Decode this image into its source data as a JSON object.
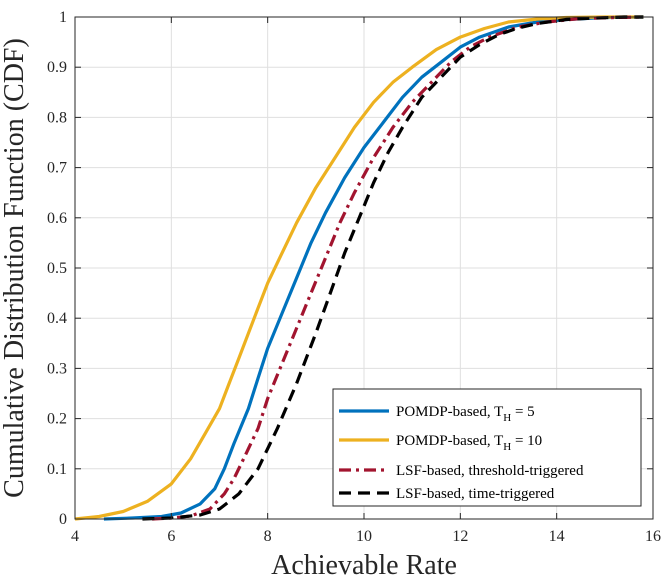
{
  "chart_data": {
    "type": "line",
    "title": "",
    "xlabel": "Achievable Rate",
    "ylabel": "Cumulative Distribution Function (CDF)",
    "xlim": [
      4,
      16
    ],
    "ylim": [
      0,
      1
    ],
    "xticks": [
      4,
      6,
      8,
      10,
      12,
      14,
      16
    ],
    "xtick_labels": [
      "4",
      "6",
      "8",
      "10",
      "12",
      "14",
      "16"
    ],
    "yticks": [
      0,
      0.1,
      0.2,
      0.3,
      0.4,
      0.5,
      0.6,
      0.7,
      0.8,
      0.9,
      1
    ],
    "ytick_labels": [
      "0",
      "0.1",
      "0.2",
      "0.3",
      "0.4",
      "0.5",
      "0.6",
      "0.7",
      "0.8",
      "0.9",
      "1"
    ],
    "grid": true,
    "legend_position": "bottom-right",
    "series": [
      {
        "label_main": "POMDP-based, T",
        "label_sub": "H",
        "label_tail": " = 5",
        "color": "#0072BD",
        "dash": "solid",
        "x": [
          4.6,
          5.2,
          5.8,
          6.2,
          6.6,
          6.9,
          7.1,
          7.3,
          7.6,
          7.8,
          8.0,
          8.3,
          8.6,
          8.9,
          9.2,
          9.6,
          10.0,
          10.4,
          10.8,
          11.2,
          11.6,
          12.0,
          12.4,
          13.0,
          13.6,
          14.2,
          15.0,
          15.8
        ],
        "y": [
          0.0,
          0.002,
          0.005,
          0.012,
          0.03,
          0.06,
          0.1,
          0.15,
          0.22,
          0.28,
          0.34,
          0.41,
          0.48,
          0.55,
          0.61,
          0.68,
          0.74,
          0.79,
          0.84,
          0.88,
          0.91,
          0.94,
          0.96,
          0.98,
          0.99,
          0.995,
          0.999,
          1.0
        ]
      },
      {
        "label_main": "POMDP-based, T",
        "label_sub": "H",
        "label_tail": " = 10",
        "color": "#EDB120",
        "dash": "solid",
        "x": [
          4.0,
          4.5,
          5.0,
          5.5,
          6.0,
          6.4,
          6.7,
          7.0,
          7.2,
          7.4,
          7.6,
          7.8,
          8.0,
          8.3,
          8.6,
          9.0,
          9.4,
          9.8,
          10.2,
          10.6,
          11.0,
          11.5,
          12.0,
          12.5,
          13.0,
          13.6,
          14.2,
          15.0,
          15.8
        ],
        "y": [
          0.0,
          0.005,
          0.015,
          0.035,
          0.07,
          0.12,
          0.17,
          0.22,
          0.27,
          0.32,
          0.37,
          0.42,
          0.47,
          0.53,
          0.59,
          0.66,
          0.72,
          0.78,
          0.83,
          0.87,
          0.9,
          0.935,
          0.96,
          0.977,
          0.99,
          0.996,
          0.999,
          1.0,
          1.0
        ]
      },
      {
        "label_main": "LSF-based, threshold-triggered",
        "label_sub": "",
        "label_tail": "",
        "color": "#A2142F",
        "dash": "dashdot",
        "x": [
          5.6,
          6.0,
          6.4,
          6.8,
          7.1,
          7.3,
          7.5,
          7.8,
          8.0,
          8.3,
          8.6,
          8.9,
          9.2,
          9.5,
          9.8,
          10.2,
          10.6,
          11.0,
          11.4,
          11.8,
          12.2,
          12.6,
          13.2,
          13.8,
          14.5,
          15.2,
          15.8
        ],
        "y": [
          0.0,
          0.002,
          0.006,
          0.02,
          0.05,
          0.08,
          0.12,
          0.18,
          0.24,
          0.31,
          0.38,
          0.45,
          0.52,
          0.59,
          0.65,
          0.72,
          0.78,
          0.83,
          0.87,
          0.91,
          0.94,
          0.96,
          0.98,
          0.99,
          0.997,
          0.999,
          1.0
        ]
      },
      {
        "label_main": "LSF-based, time-triggered",
        "label_sub": "",
        "label_tail": "",
        "color": "#000000",
        "dash": "dashed",
        "x": [
          5.4,
          6.0,
          6.6,
          7.0,
          7.4,
          7.8,
          8.2,
          8.6,
          9.0,
          9.3,
          9.6,
          9.9,
          10.2,
          10.5,
          10.8,
          11.2,
          11.6,
          12.0,
          12.4,
          12.8,
          13.2,
          13.6,
          14.2,
          14.8,
          15.4,
          15.8
        ],
        "y": [
          0.0,
          0.002,
          0.008,
          0.02,
          0.05,
          0.1,
          0.18,
          0.27,
          0.37,
          0.45,
          0.53,
          0.6,
          0.67,
          0.73,
          0.78,
          0.84,
          0.88,
          0.92,
          0.945,
          0.965,
          0.978,
          0.987,
          0.995,
          0.998,
          1.0,
          1.0
        ]
      }
    ]
  }
}
